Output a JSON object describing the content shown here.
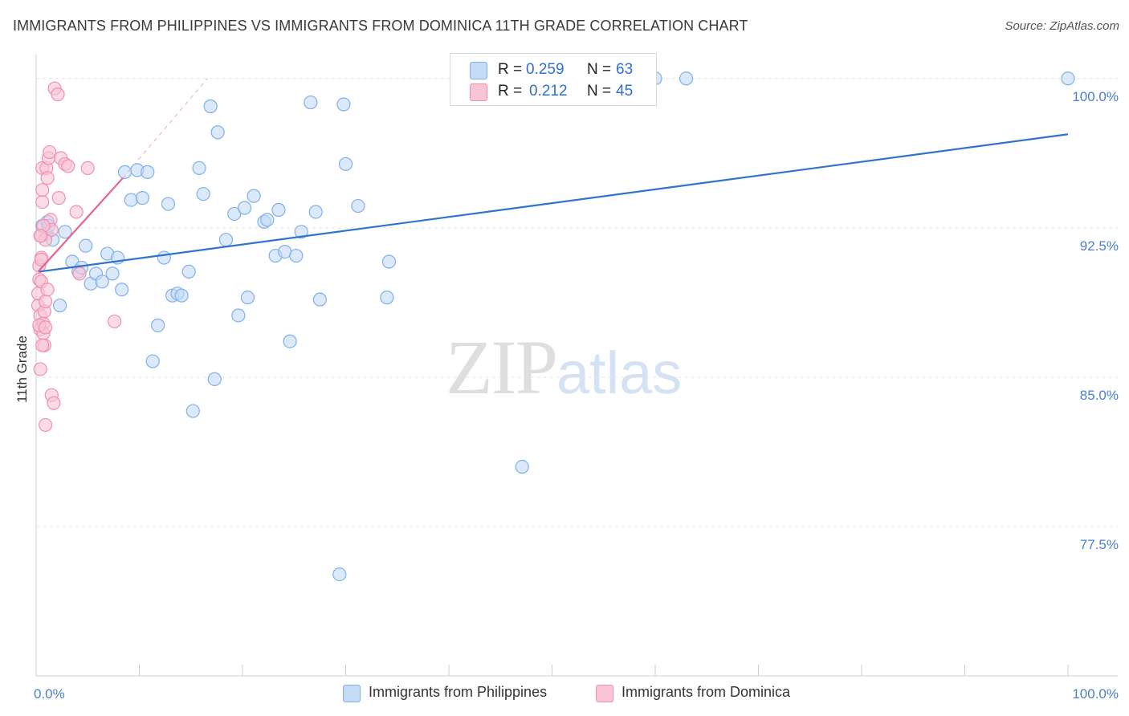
{
  "header": {
    "title": "IMMIGRANTS FROM PHILIPPINES VS IMMIGRANTS FROM DOMINICA 11TH GRADE CORRELATION CHART",
    "source": "Source: ZipAtlas.com"
  },
  "watermark": {
    "zip": "ZIP",
    "atlas": "atlas"
  },
  "legend": {
    "r_label": "R =",
    "n_label": "N =",
    "series": [
      {
        "r": "0.259",
        "n": "63"
      },
      {
        "r": "0.212",
        "n": "45"
      }
    ]
  },
  "bottom_legend": [
    "Immigrants from Philippines",
    "Immigrants from Dominica"
  ],
  "chart_data": {
    "type": "scatter",
    "title": "IMMIGRANTS FROM PHILIPPINES VS IMMIGRANTS FROM DOMINICA 11TH GRADE CORRELATION CHART",
    "xlabel": "",
    "ylabel": "11th Grade",
    "xlim": [
      0,
      100
    ],
    "ylim": [
      70.0,
      101.2
    ],
    "x_tick_labels": [
      "0.0%",
      "100.0%"
    ],
    "y_ticks": [
      77.5,
      85.0,
      92.5,
      100.0
    ],
    "y_tick_labels": [
      "77.5%",
      "85.0%",
      "92.5%",
      "100.0%"
    ],
    "grid": true,
    "series": [
      {
        "name": "Immigrants from Philippines",
        "color": "#7fb0e8",
        "fill": "#c5dbf6",
        "trend_color": "#2f73d1",
        "trend": {
          "x0": 0.3,
          "y0": 90.3,
          "x1": 100,
          "y1": 97.2
        },
        "points": [
          [
            0.6,
            92.6
          ],
          [
            1.0,
            92.2
          ],
          [
            1.1,
            92.8
          ],
          [
            1.2,
            92.6
          ],
          [
            1.6,
            91.9
          ],
          [
            2.3,
            88.6
          ],
          [
            2.8,
            92.3
          ],
          [
            3.5,
            90.8
          ],
          [
            4.1,
            90.3
          ],
          [
            4.4,
            90.5
          ],
          [
            4.8,
            91.6
          ],
          [
            5.3,
            89.7
          ],
          [
            5.8,
            90.2
          ],
          [
            6.4,
            89.8
          ],
          [
            6.9,
            91.2
          ],
          [
            7.4,
            90.2
          ],
          [
            7.9,
            91.0
          ],
          [
            8.3,
            89.4
          ],
          [
            8.6,
            95.3
          ],
          [
            9.2,
            93.9
          ],
          [
            9.8,
            95.4
          ],
          [
            10.3,
            94.0
          ],
          [
            10.8,
            95.3
          ],
          [
            11.3,
            85.8
          ],
          [
            11.8,
            87.6
          ],
          [
            12.4,
            91.0
          ],
          [
            12.8,
            93.7
          ],
          [
            13.2,
            89.1
          ],
          [
            13.7,
            89.2
          ],
          [
            14.1,
            89.1
          ],
          [
            14.8,
            90.3
          ],
          [
            15.2,
            83.3
          ],
          [
            15.8,
            95.5
          ],
          [
            16.2,
            94.2
          ],
          [
            16.9,
            98.6
          ],
          [
            17.3,
            84.9
          ],
          [
            17.6,
            97.3
          ],
          [
            18.4,
            91.9
          ],
          [
            19.2,
            93.2
          ],
          [
            19.6,
            88.1
          ],
          [
            20.2,
            93.5
          ],
          [
            20.5,
            89.0
          ],
          [
            21.1,
            94.1
          ],
          [
            22.1,
            92.8
          ],
          [
            22.4,
            92.9
          ],
          [
            23.2,
            91.1
          ],
          [
            23.5,
            93.4
          ],
          [
            24.1,
            91.3
          ],
          [
            24.6,
            86.8
          ],
          [
            25.2,
            91.1
          ],
          [
            25.7,
            92.3
          ],
          [
            26.6,
            98.8
          ],
          [
            27.1,
            93.3
          ],
          [
            27.5,
            88.9
          ],
          [
            29.4,
            75.1
          ],
          [
            29.8,
            98.7
          ],
          [
            30.0,
            95.7
          ],
          [
            31.2,
            93.6
          ],
          [
            34.0,
            89.0
          ],
          [
            34.2,
            90.8
          ],
          [
            47.1,
            80.5
          ],
          [
            60.0,
            100.0
          ],
          [
            63.0,
            100.0
          ],
          [
            100.0,
            100.0
          ]
        ]
      },
      {
        "name": "Immigrants from Dominica",
        "color": "#f28fb0",
        "fill": "#f9c5d6",
        "trend_color": "#e8638e",
        "trend": {
          "x0": 0.2,
          "y0": 90.3,
          "x1": 8.4,
          "y1": 95.0
        },
        "trend_dashed_to": {
          "x": 16.6,
          "y": 100.0
        },
        "points": [
          [
            0.2,
            88.6
          ],
          [
            0.2,
            89.2
          ],
          [
            0.3,
            89.9
          ],
          [
            0.3,
            90.6
          ],
          [
            0.4,
            88.1
          ],
          [
            0.4,
            87.4
          ],
          [
            0.4,
            85.4
          ],
          [
            0.5,
            89.8
          ],
          [
            0.5,
            91.0
          ],
          [
            0.5,
            92.1
          ],
          [
            0.6,
            93.8
          ],
          [
            0.6,
            94.4
          ],
          [
            0.6,
            95.5
          ],
          [
            0.7,
            87.7
          ],
          [
            0.7,
            87.2
          ],
          [
            0.8,
            86.6
          ],
          [
            0.8,
            88.3
          ],
          [
            0.9,
            88.8
          ],
          [
            0.9,
            82.6
          ],
          [
            0.9,
            91.9
          ],
          [
            1.0,
            95.5
          ],
          [
            1.1,
            95.0
          ],
          [
            1.2,
            96.0
          ],
          [
            1.3,
            96.3
          ],
          [
            1.4,
            92.9
          ],
          [
            1.5,
            92.4
          ],
          [
            1.5,
            84.1
          ],
          [
            1.7,
            83.7
          ],
          [
            1.8,
            99.5
          ],
          [
            2.1,
            99.2
          ],
          [
            2.2,
            94.0
          ],
          [
            2.4,
            96.0
          ],
          [
            2.8,
            95.7
          ],
          [
            3.1,
            95.6
          ],
          [
            3.9,
            93.3
          ],
          [
            4.2,
            90.2
          ],
          [
            5.0,
            95.5
          ],
          [
            7.6,
            87.8
          ],
          [
            0.3,
            87.6
          ],
          [
            0.5,
            90.9
          ],
          [
            0.7,
            92.6
          ],
          [
            0.4,
            92.1
          ],
          [
            0.9,
            87.5
          ],
          [
            1.1,
            89.4
          ],
          [
            0.6,
            86.6
          ]
        ]
      }
    ]
  }
}
